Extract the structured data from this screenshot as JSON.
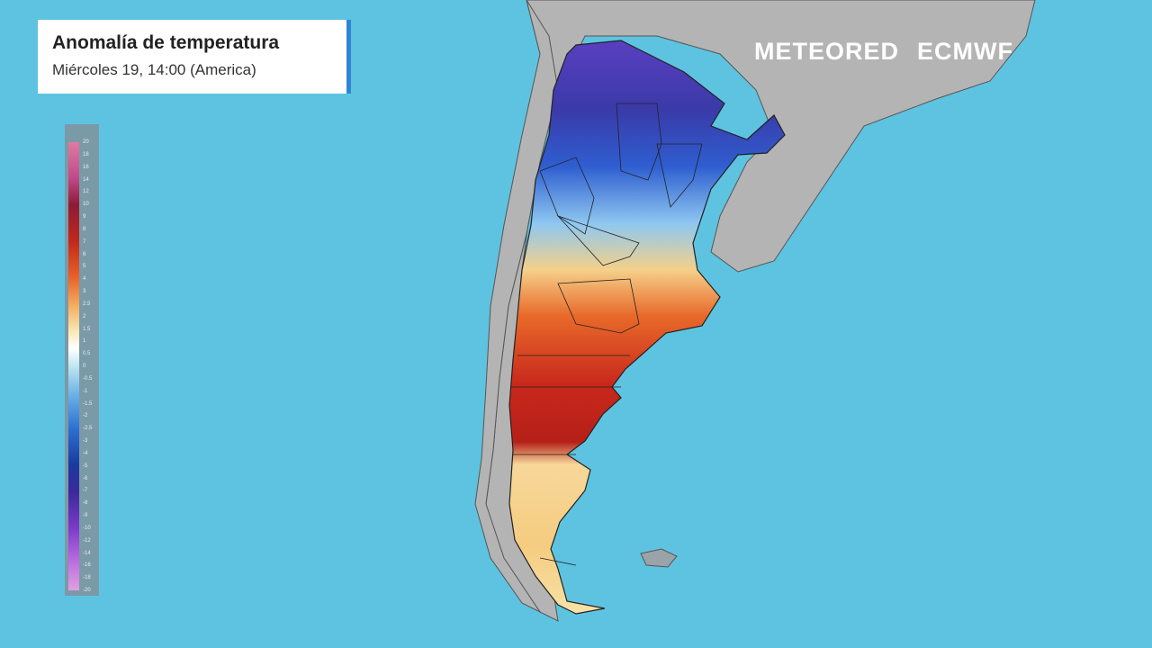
{
  "header": {
    "title": "Anomalía de temperatura",
    "subtitle": "Miércoles 19, 14:00 (America)"
  },
  "logos": {
    "brand": "METEORED",
    "partner": "ECMWF"
  },
  "legend": {
    "labels": [
      20,
      18,
      16,
      14,
      12,
      10,
      9,
      8,
      7,
      6,
      5,
      4,
      3,
      2.5,
      2,
      1.5,
      1,
      0.5,
      0,
      -0.5,
      -1,
      -1.5,
      -2,
      -2.5,
      -3,
      -4,
      -5,
      -6,
      -7,
      -8,
      -9,
      -10,
      -12,
      -14,
      -16,
      -18,
      -20
    ]
  }
}
